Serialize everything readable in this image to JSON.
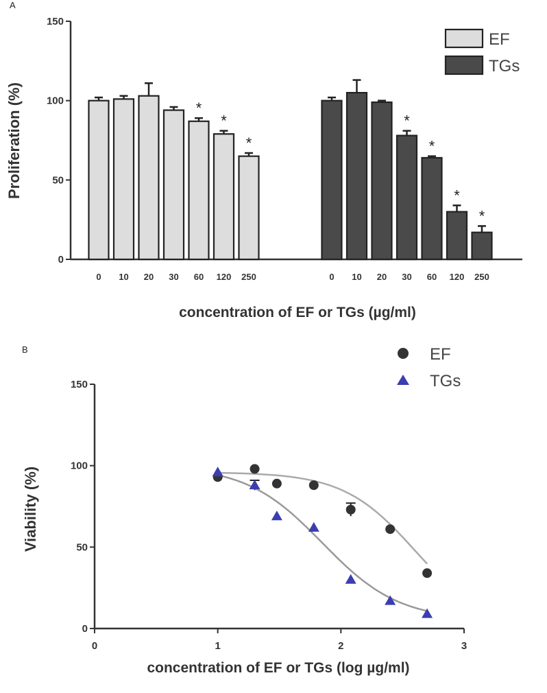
{
  "chart_data": [
    {
      "panel_label": "A",
      "type": "bar",
      "ylabel": "Proliferation (%)",
      "xlabel": "concentration of EF or TGs (µg/ml)",
      "ylim": [
        0,
        150
      ],
      "yticks": [
        "0",
        "50",
        "100",
        "150"
      ],
      "legend_position": "top-right",
      "series": [
        {
          "name": "EF",
          "color": "#dddddd",
          "categories": [
            "0",
            "10",
            "20",
            "30",
            "60",
            "120",
            "250"
          ],
          "values": [
            100,
            101,
            103,
            94,
            87,
            79,
            65
          ],
          "errors": [
            2,
            2,
            8,
            2,
            2,
            2,
            2
          ],
          "significant": [
            false,
            false,
            false,
            false,
            true,
            true,
            true
          ]
        },
        {
          "name": "TGs",
          "color": "#4a4a4a",
          "categories": [
            "0",
            "10",
            "20",
            "30",
            "60",
            "120",
            "250"
          ],
          "values": [
            100,
            105,
            99,
            78,
            64,
            30,
            17
          ],
          "errors": [
            2,
            8,
            1,
            3,
            1,
            4,
            4
          ],
          "significant": [
            false,
            false,
            false,
            true,
            true,
            true,
            true
          ]
        }
      ],
      "significance_marker": "*"
    },
    {
      "panel_label": "B",
      "type": "scatter",
      "ylabel": "Viability (%)",
      "xlabel": "concentration of EF or TGs  (log µg/ml)",
      "xlim": [
        0,
        3
      ],
      "ylim": [
        0,
        150
      ],
      "xticks": [
        "0",
        "1",
        "2",
        "3"
      ],
      "yticks": [
        "0",
        "50",
        "100",
        "150"
      ],
      "legend_position": "top-right",
      "series": [
        {
          "name": "EF",
          "marker": "circle",
          "color": "#333333",
          "x": [
            1.0,
            1.3,
            1.48,
            1.78,
            2.08,
            2.4,
            2.7
          ],
          "y": [
            93,
            98,
            89,
            88,
            73,
            61,
            34
          ],
          "errors": [
            0,
            0,
            0,
            0,
            4,
            0,
            0
          ],
          "fit": {
            "top": 96,
            "bottom": 0,
            "log_ic50": 2.6,
            "hill": 1.5,
            "color": "#aaaaaa"
          }
        },
        {
          "name": "TGs",
          "marker": "triangle",
          "color": "#3b3db0",
          "x": [
            1.0,
            1.3,
            1.48,
            1.78,
            2.08,
            2.4,
            2.7
          ],
          "y": [
            96,
            88,
            69,
            62,
            30,
            17,
            9
          ],
          "errors": [
            0,
            3,
            0,
            0,
            0,
            0,
            0
          ],
          "fit": {
            "top": 100,
            "bottom": 5,
            "log_ic50": 1.85,
            "hill": 1.4,
            "color": "#999999"
          }
        }
      ]
    }
  ]
}
